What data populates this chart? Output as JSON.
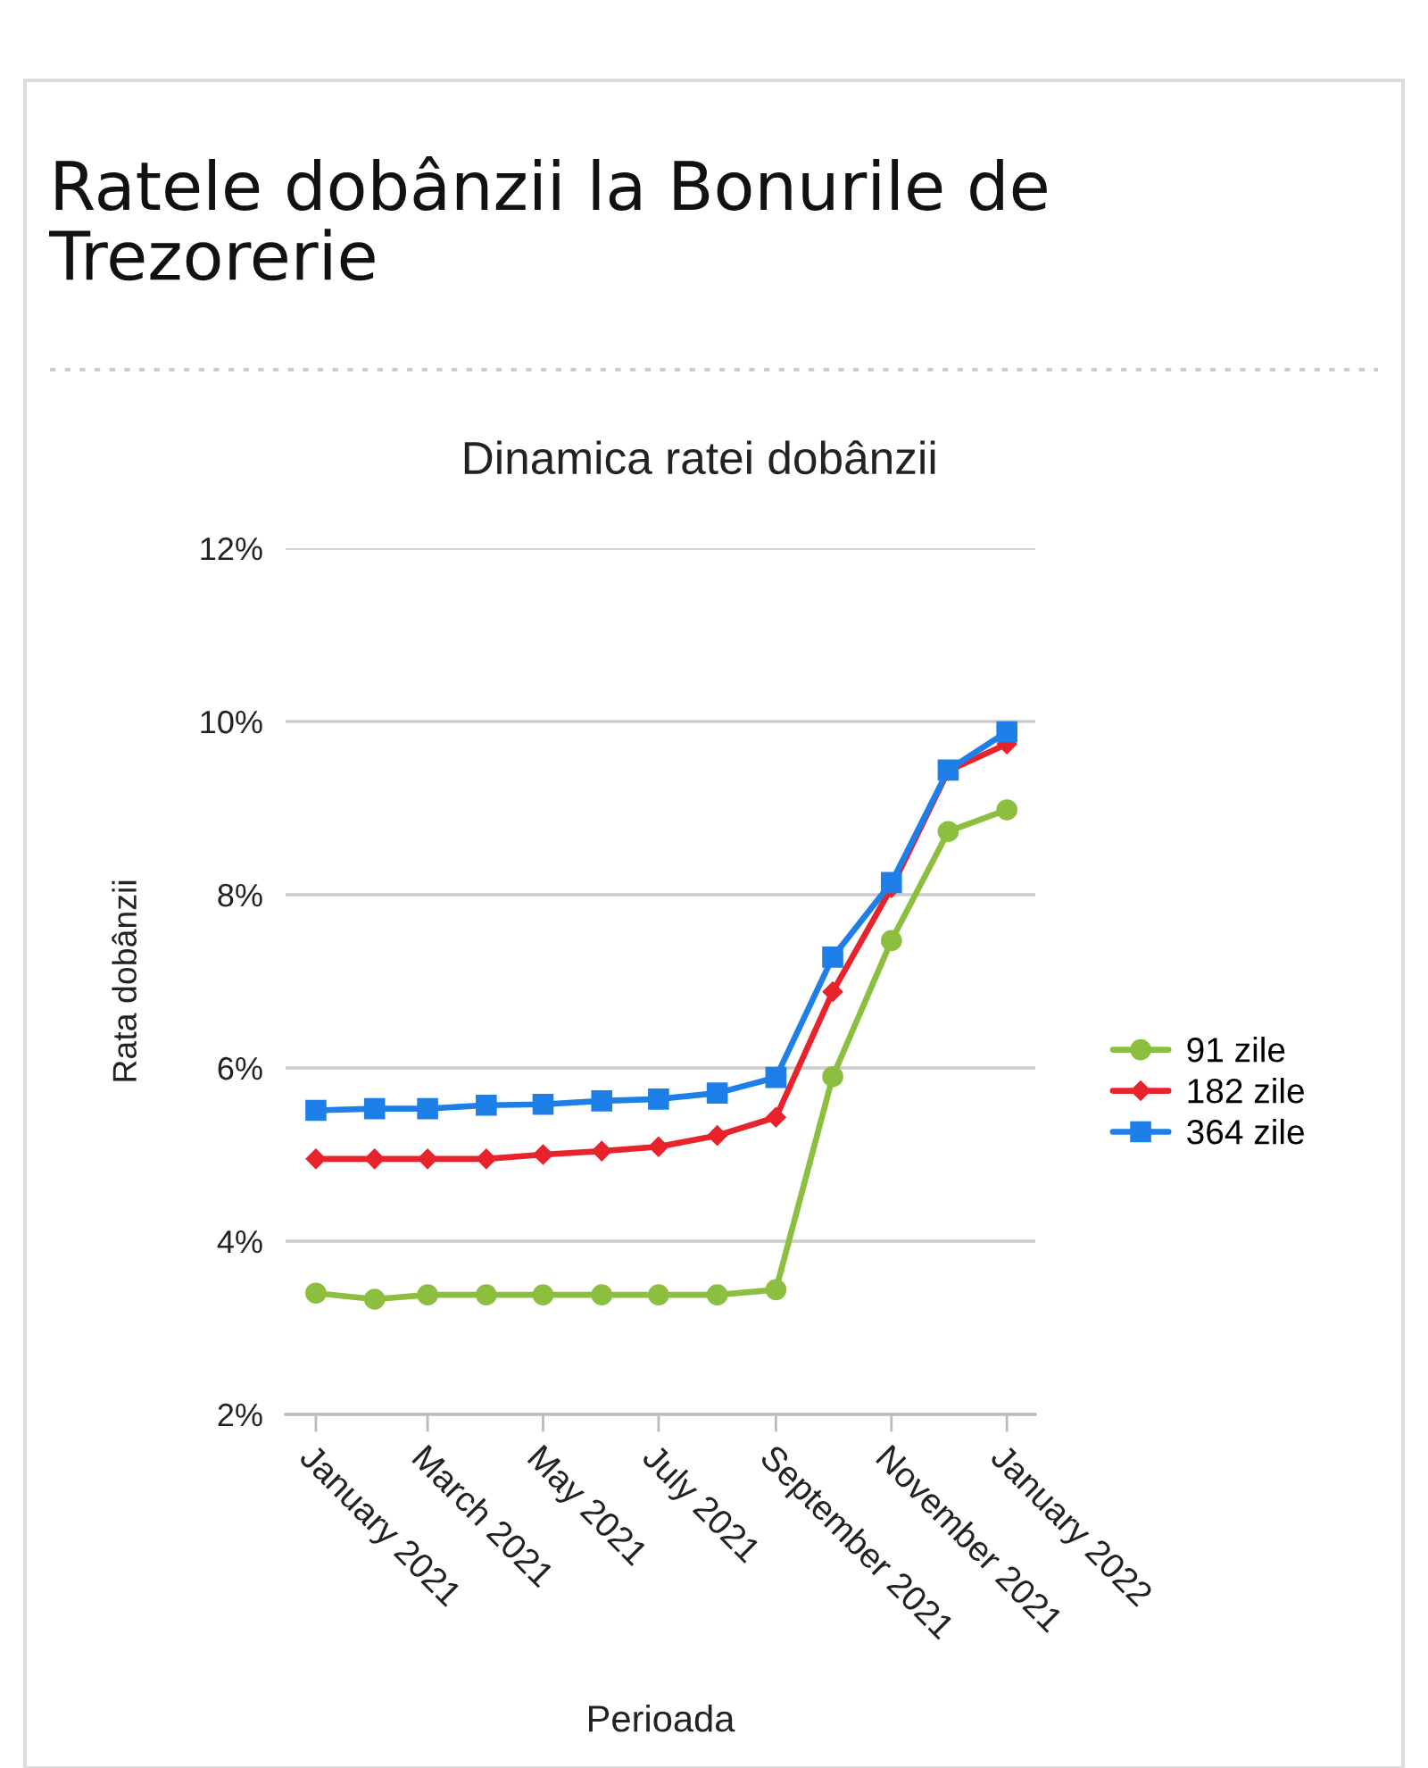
{
  "chart_data": {
    "type": "line",
    "title": "Ratele dobânzii la Bonurile de Trezorerie",
    "subtitle": "Dinamica ratei dobânzii",
    "xlabel": "Perioada",
    "ylabel": "Rata dobânzii",
    "x": [
      "2021-01",
      "2021-02",
      "2021-03",
      "2021-04",
      "2021-05",
      "2021-06",
      "2021-07",
      "2021-08",
      "2021-09",
      "2021-10",
      "2021-11",
      "2021-12",
      "2022-01"
    ],
    "series": [
      {
        "name": "91 zile",
        "color": "#8cbf3f",
        "marker": "circle",
        "values": [
          3.4,
          3.33,
          3.38,
          3.38,
          3.38,
          3.38,
          3.38,
          3.38,
          3.44,
          5.9,
          7.47,
          8.73,
          8.98
        ]
      },
      {
        "name": "182 zile",
        "color": "#e8232b",
        "marker": "diamond",
        "values": [
          4.95,
          4.95,
          4.95,
          4.95,
          5.0,
          5.04,
          5.09,
          5.22,
          5.43,
          6.88,
          8.08,
          9.43,
          9.74
        ]
      },
      {
        "name": "364 zile",
        "color": "#1f7fe8",
        "marker": "square",
        "values": [
          5.51,
          5.53,
          5.53,
          5.57,
          5.58,
          5.62,
          5.64,
          5.71,
          5.89,
          7.28,
          8.14,
          9.44,
          9.88
        ]
      }
    ],
    "xlim": [
      "2020-12-16",
      "2022-01-16"
    ],
    "xticks": [
      {
        "value": "2021-01",
        "label": "January 2021"
      },
      {
        "value": "2021-03",
        "label": "March 2021"
      },
      {
        "value": "2021-05",
        "label": "May 2021"
      },
      {
        "value": "2021-07",
        "label": "July 2021"
      },
      {
        "value": "2021-09",
        "label": "September 2021"
      },
      {
        "value": "2021-11",
        "label": "November 2021"
      },
      {
        "value": "2022-01",
        "label": "January 2022"
      }
    ],
    "ylim": [
      2,
      12
    ],
    "yticks": [
      {
        "value": 2,
        "label": "2%"
      },
      {
        "value": 4,
        "label": "4%"
      },
      {
        "value": 6,
        "label": "6%"
      },
      {
        "value": 8,
        "label": "8%"
      },
      {
        "value": 10,
        "label": "10%"
      },
      {
        "value": 12,
        "label": "12%"
      }
    ],
    "grid": "y",
    "legend": "right",
    "line_style": "solid"
  }
}
